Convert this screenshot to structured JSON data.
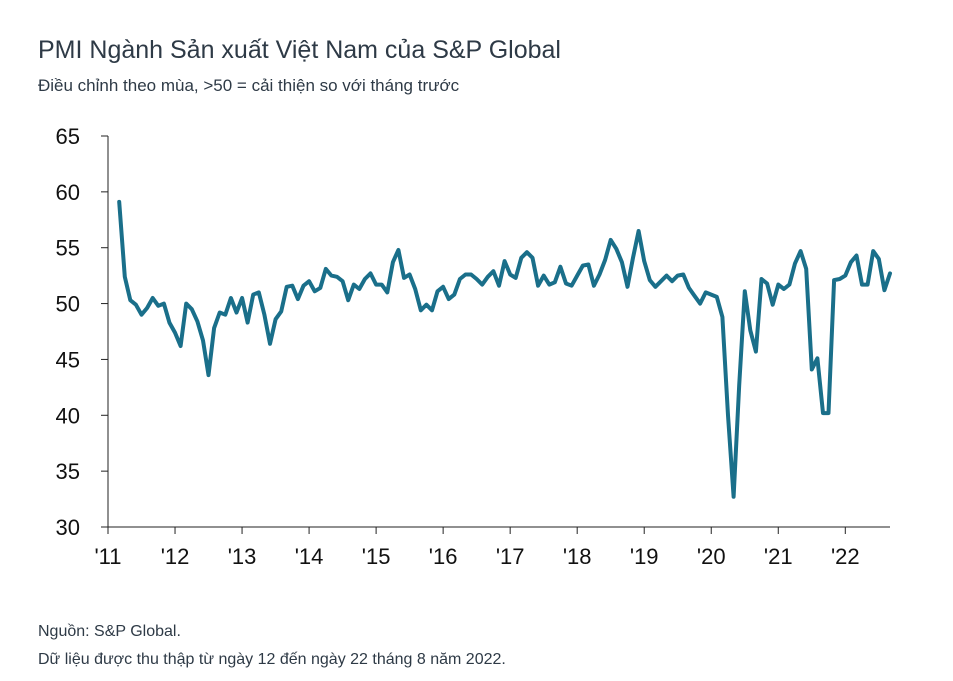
{
  "header": {
    "title": "PMI Ngành Sản xuất Việt Nam của S&P Global",
    "subtitle": "Điều chỉnh theo mùa, >50 = cải thiện so với tháng trước"
  },
  "footer": {
    "source": "Nguồn: S&P Global.",
    "note": "Dữ liệu được thu thập từ ngày 12 đến ngày 22 tháng 8 năm 2022."
  },
  "chart_data": {
    "type": "line",
    "title": "PMI Ngành Sản xuất Việt Nam của S&P Global",
    "subtitle": "Điều chỉnh theo mùa, >50 = cải thiện so với tháng trước",
    "xlabel": "",
    "ylabel": "",
    "ylim": [
      30,
      65
    ],
    "yticks": [
      30,
      35,
      40,
      45,
      50,
      55,
      60,
      65
    ],
    "xlim": [
      2011.0,
      2022.667
    ],
    "xticks": [
      {
        "value": 2011,
        "label": "'11"
      },
      {
        "value": 2012,
        "label": "'12"
      },
      {
        "value": 2013,
        "label": "'13"
      },
      {
        "value": 2014,
        "label": "'14"
      },
      {
        "value": 2015,
        "label": "'15"
      },
      {
        "value": 2016,
        "label": "'16"
      },
      {
        "value": 2017,
        "label": "'17"
      },
      {
        "value": 2018,
        "label": "'18"
      },
      {
        "value": 2019,
        "label": "'19"
      },
      {
        "value": 2020,
        "label": "'20"
      },
      {
        "value": 2021,
        "label": "'21"
      },
      {
        "value": 2022,
        "label": "'22"
      }
    ],
    "grid": false,
    "line_color": "#1a6f8a",
    "series": [
      {
        "name": "PMI",
        "start": "2011-03",
        "values": [
          59.1,
          52.4,
          50.3,
          49.9,
          49.0,
          49.6,
          50.5,
          49.8,
          50.0,
          48.3,
          47.4,
          46.2,
          50.0,
          49.5,
          48.4,
          46.7,
          43.6,
          47.8,
          49.2,
          49.0,
          50.5,
          49.2,
          50.5,
          48.3,
          50.8,
          51.0,
          49.0,
          46.4,
          48.6,
          49.3,
          51.5,
          51.6,
          50.4,
          51.6,
          52.0,
          51.1,
          51.4,
          53.1,
          52.5,
          52.4,
          52.0,
          50.3,
          51.7,
          51.3,
          52.2,
          52.7,
          51.7,
          51.7,
          51.0,
          53.7,
          54.8,
          52.3,
          52.6,
          51.3,
          49.4,
          49.9,
          49.4,
          51.1,
          51.5,
          50.4,
          50.8,
          52.2,
          52.6,
          52.6,
          52.2,
          51.7,
          52.4,
          52.9,
          51.6,
          53.8,
          52.6,
          52.3,
          54.1,
          54.6,
          54.1,
          51.6,
          52.5,
          51.7,
          51.9,
          53.3,
          51.8,
          51.6,
          52.5,
          53.4,
          53.5,
          51.6,
          52.6,
          53.9,
          55.7,
          54.9,
          53.7,
          51.5,
          54.1,
          56.5,
          53.8,
          52.1,
          51.5,
          52.0,
          52.5,
          52.0,
          52.5,
          52.6,
          51.4,
          50.7,
          50.0,
          51.0,
          50.8,
          50.6,
          48.8,
          40.0,
          32.7,
          42.7,
          51.1,
          47.6,
          45.7,
          52.2,
          51.8,
          49.9,
          51.7,
          51.3,
          51.7,
          53.6,
          54.7,
          53.1,
          44.1,
          45.1,
          40.2,
          40.2,
          52.1,
          52.2,
          52.5,
          53.7,
          54.3,
          51.7,
          51.7,
          54.7,
          54.0,
          51.2,
          52.7
        ]
      }
    ]
  }
}
